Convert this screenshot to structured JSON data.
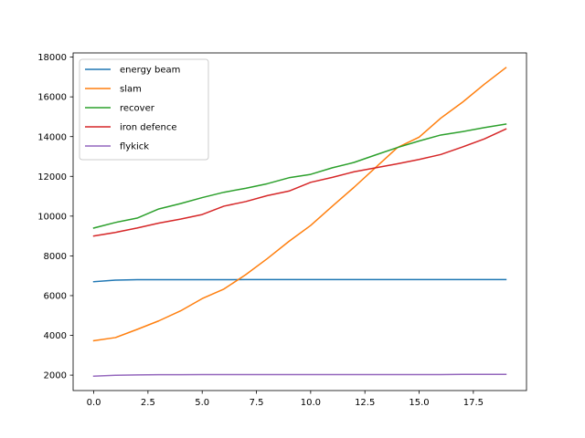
{
  "chart_data": {
    "type": "line",
    "title": "",
    "xlabel": "",
    "ylabel": "",
    "xlim": [
      -0.95,
      19.95
    ],
    "ylim": [
      1224,
      18210
    ],
    "x_ticks": [
      0,
      2.5,
      5,
      7.5,
      10,
      12.5,
      15,
      17.5
    ],
    "x_tick_labels": [
      "0.0",
      "2.5",
      "5.0",
      "7.5",
      "10.0",
      "12.5",
      "15.0",
      "17.5"
    ],
    "y_ticks": [
      2000,
      4000,
      6000,
      8000,
      10000,
      12000,
      14000,
      16000,
      18000
    ],
    "y_tick_labels": [
      "2000",
      "4000",
      "6000",
      "8000",
      "10000",
      "12000",
      "14000",
      "16000",
      "18000"
    ],
    "grid": false,
    "legend_position": "upper-left",
    "x": [
      0,
      1,
      2,
      3,
      4,
      5,
      6,
      7,
      8,
      9,
      10,
      11,
      12,
      13,
      14,
      15,
      16,
      17,
      18,
      19
    ],
    "series": [
      {
        "name": "energy beam",
        "color": "#1f77b4",
        "values": [
          6700,
          6780,
          6800,
          6800,
          6800,
          6800,
          6800,
          6810,
          6810,
          6810,
          6810,
          6810,
          6810,
          6810,
          6810,
          6810,
          6810,
          6810,
          6810,
          6810
        ]
      },
      {
        "name": "slam",
        "color": "#ff7f0e",
        "values": [
          3730,
          3890,
          4300,
          4730,
          5230,
          5850,
          6330,
          7050,
          7860,
          8730,
          9530,
          10500,
          11450,
          12450,
          13450,
          13970,
          14930,
          15730,
          16630,
          17470
        ]
      },
      {
        "name": "recover",
        "color": "#2ca02c",
        "values": [
          9400,
          9680,
          9900,
          10360,
          10630,
          10930,
          11200,
          11400,
          11630,
          11930,
          12100,
          12430,
          12700,
          13080,
          13450,
          13780,
          14080,
          14250,
          14450,
          14630
        ]
      },
      {
        "name": "iron defence",
        "color": "#d62728",
        "values": [
          9000,
          9180,
          9400,
          9650,
          9850,
          10080,
          10500,
          10730,
          11030,
          11260,
          11700,
          11950,
          12230,
          12430,
          12630,
          12850,
          13100,
          13480,
          13880,
          14380
        ]
      },
      {
        "name": "flykick",
        "color": "#9467bd",
        "values": [
          1950,
          1990,
          2010,
          2020,
          2020,
          2030,
          2030,
          2030,
          2030,
          2030,
          2030,
          2030,
          2030,
          2030,
          2030,
          2030,
          2030,
          2040,
          2040,
          2040
        ]
      }
    ]
  }
}
